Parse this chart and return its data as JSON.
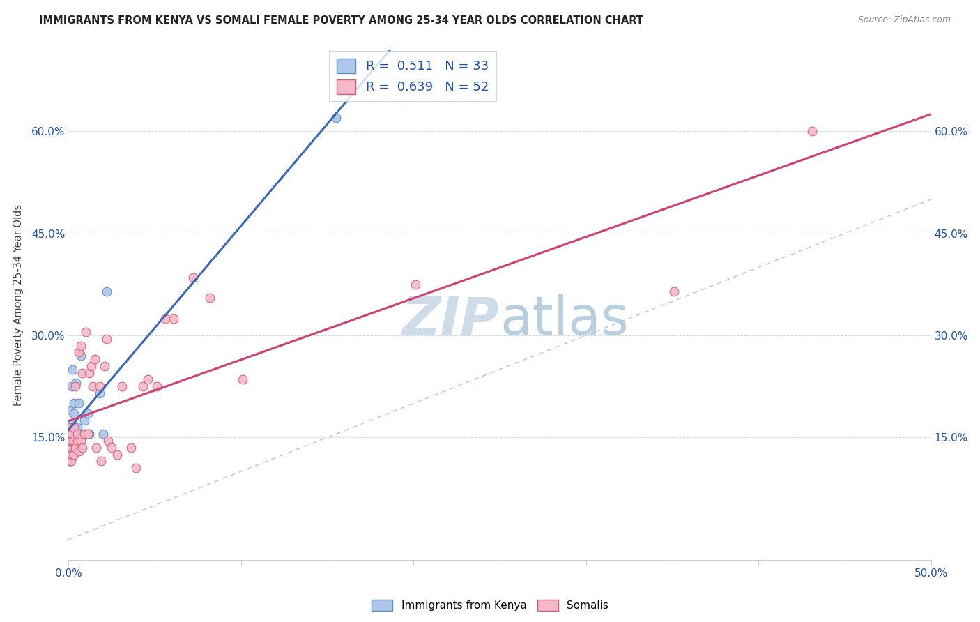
{
  "title": "IMMIGRANTS FROM KENYA VS SOMALI FEMALE POVERTY AMONG 25-34 YEAR OLDS CORRELATION CHART",
  "source": "Source: ZipAtlas.com",
  "ylabel": "Female Poverty Among 25-34 Year Olds",
  "xlim": [
    0.0,
    0.5
  ],
  "ylim": [
    -0.03,
    0.72
  ],
  "ytick_positions": [
    0.15,
    0.3,
    0.45,
    0.6
  ],
  "ytick_labels": [
    "15.0%",
    "30.0%",
    "45.0%",
    "60.0%"
  ],
  "kenya_R": "0.511",
  "kenya_N": "33",
  "somali_R": "0.639",
  "somali_N": "52",
  "kenya_scatter_color": "#aec6e8",
  "kenya_scatter_edge": "#5b8ec4",
  "somali_scatter_color": "#f4b8c8",
  "somali_scatter_edge": "#d45c78",
  "kenya_trend_color": "#3a68b8",
  "somali_trend_color": "#d04070",
  "diag_color": "#b0c8d8",
  "legend_color": "#1a4fb0",
  "kenya_x": [
    0.0005,
    0.0007,
    0.0008,
    0.001,
    0.001,
    0.001,
    0.0012,
    0.0015,
    0.002,
    0.002,
    0.002,
    0.0022,
    0.0025,
    0.003,
    0.003,
    0.0032,
    0.004,
    0.004,
    0.0042,
    0.005,
    0.005,
    0.006,
    0.007,
    0.007,
    0.008,
    0.009,
    0.01,
    0.011,
    0.012,
    0.018,
    0.02,
    0.022,
    0.155
  ],
  "kenya_y": [
    0.135,
    0.145,
    0.155,
    0.125,
    0.17,
    0.19,
    0.145,
    0.165,
    0.145,
    0.155,
    0.225,
    0.25,
    0.145,
    0.145,
    0.185,
    0.2,
    0.145,
    0.15,
    0.23,
    0.155,
    0.165,
    0.2,
    0.155,
    0.27,
    0.155,
    0.175,
    0.155,
    0.185,
    0.155,
    0.215,
    0.155,
    0.365,
    0.62
  ],
  "somali_x": [
    0.0005,
    0.0007,
    0.001,
    0.001,
    0.001,
    0.001,
    0.0015,
    0.002,
    0.002,
    0.002,
    0.003,
    0.003,
    0.003,
    0.004,
    0.004,
    0.005,
    0.005,
    0.006,
    0.006,
    0.007,
    0.007,
    0.008,
    0.008,
    0.009,
    0.01,
    0.011,
    0.012,
    0.013,
    0.014,
    0.015,
    0.016,
    0.018,
    0.019,
    0.021,
    0.022,
    0.023,
    0.025,
    0.028,
    0.031,
    0.036,
    0.039,
    0.043,
    0.046,
    0.051,
    0.056,
    0.061,
    0.072,
    0.082,
    0.101,
    0.201,
    0.351,
    0.431
  ],
  "somali_y": [
    0.115,
    0.125,
    0.115,
    0.135,
    0.145,
    0.165,
    0.115,
    0.125,
    0.145,
    0.155,
    0.125,
    0.145,
    0.165,
    0.135,
    0.225,
    0.145,
    0.155,
    0.13,
    0.275,
    0.145,
    0.285,
    0.135,
    0.245,
    0.155,
    0.305,
    0.155,
    0.245,
    0.255,
    0.225,
    0.265,
    0.135,
    0.225,
    0.115,
    0.255,
    0.295,
    0.145,
    0.135,
    0.125,
    0.225,
    0.135,
    0.105,
    0.225,
    0.235,
    0.225,
    0.325,
    0.325,
    0.385,
    0.355,
    0.235,
    0.375,
    0.365,
    0.6
  ]
}
